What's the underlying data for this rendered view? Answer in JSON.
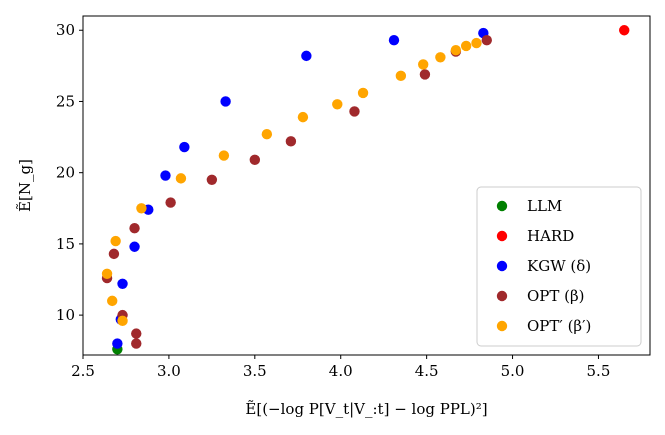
{
  "chart_data": {
    "type": "scatter",
    "title": "",
    "xlabel": "Ẽ[(−log P[V_t|V_:t] − log PPL)²]",
    "ylabel": "Ẽ[N_g]",
    "xlim": [
      2.5,
      5.8
    ],
    "ylim": [
      7.2,
      31.0
    ],
    "xticks": [
      2.5,
      3.0,
      3.5,
      4.0,
      4.5,
      5.0,
      5.5
    ],
    "xtick_labels": [
      "2.5",
      "3.0",
      "3.5",
      "4.0",
      "4.5",
      "5.0",
      "5.5"
    ],
    "yticks": [
      10,
      15,
      20,
      25,
      30
    ],
    "ytick_labels": [
      "10",
      "15",
      "20",
      "25",
      "30"
    ],
    "grid": false,
    "legend_position": "lower-right",
    "series": [
      {
        "name": "LLM",
        "legend_label": "LLM",
        "color": "#008000",
        "points": [
          [
            2.7,
            7.6
          ]
        ]
      },
      {
        "name": "HARD",
        "legend_label": "HARD",
        "color": "#ff0000",
        "points": [
          [
            5.65,
            30.0
          ]
        ]
      },
      {
        "name": "KGW",
        "legend_label": "KGW (δ)",
        "color": "#0000ff",
        "points": [
          [
            2.7,
            8.0
          ],
          [
            2.72,
            9.7
          ],
          [
            2.73,
            12.2
          ],
          [
            2.8,
            14.8
          ],
          [
            2.88,
            17.4
          ],
          [
            2.98,
            19.8
          ],
          [
            3.09,
            21.8
          ],
          [
            3.33,
            25.0
          ],
          [
            3.8,
            28.2
          ],
          [
            4.31,
            29.3
          ],
          [
            4.83,
            29.8
          ]
        ]
      },
      {
        "name": "OPT",
        "legend_label": "OPT (β)",
        "color": "#a0292c",
        "points": [
          [
            2.64,
            12.6
          ],
          [
            2.68,
            14.3
          ],
          [
            2.73,
            10.0
          ],
          [
            2.8,
            16.1
          ],
          [
            2.81,
            8.7
          ],
          [
            2.81,
            8.0
          ],
          [
            3.01,
            17.9
          ],
          [
            3.25,
            19.5
          ],
          [
            3.5,
            20.9
          ],
          [
            3.71,
            22.2
          ],
          [
            4.08,
            24.3
          ],
          [
            4.49,
            26.9
          ],
          [
            4.67,
            28.5
          ],
          [
            4.85,
            29.3
          ]
        ]
      },
      {
        "name": "OPT'",
        "legend_label": "OPT′ (β′)",
        "color": "#ffa500",
        "points": [
          [
            2.64,
            12.9
          ],
          [
            2.67,
            11.0
          ],
          [
            2.69,
            15.2
          ],
          [
            2.73,
            9.6
          ],
          [
            2.84,
            17.5
          ],
          [
            3.07,
            19.6
          ],
          [
            3.32,
            21.2
          ],
          [
            3.57,
            22.7
          ],
          [
            3.78,
            23.9
          ],
          [
            3.98,
            24.8
          ],
          [
            4.13,
            25.6
          ],
          [
            4.35,
            26.8
          ],
          [
            4.48,
            27.6
          ],
          [
            4.58,
            28.1
          ],
          [
            4.67,
            28.6
          ],
          [
            4.73,
            28.9
          ],
          [
            4.79,
            29.1
          ]
        ]
      }
    ]
  }
}
